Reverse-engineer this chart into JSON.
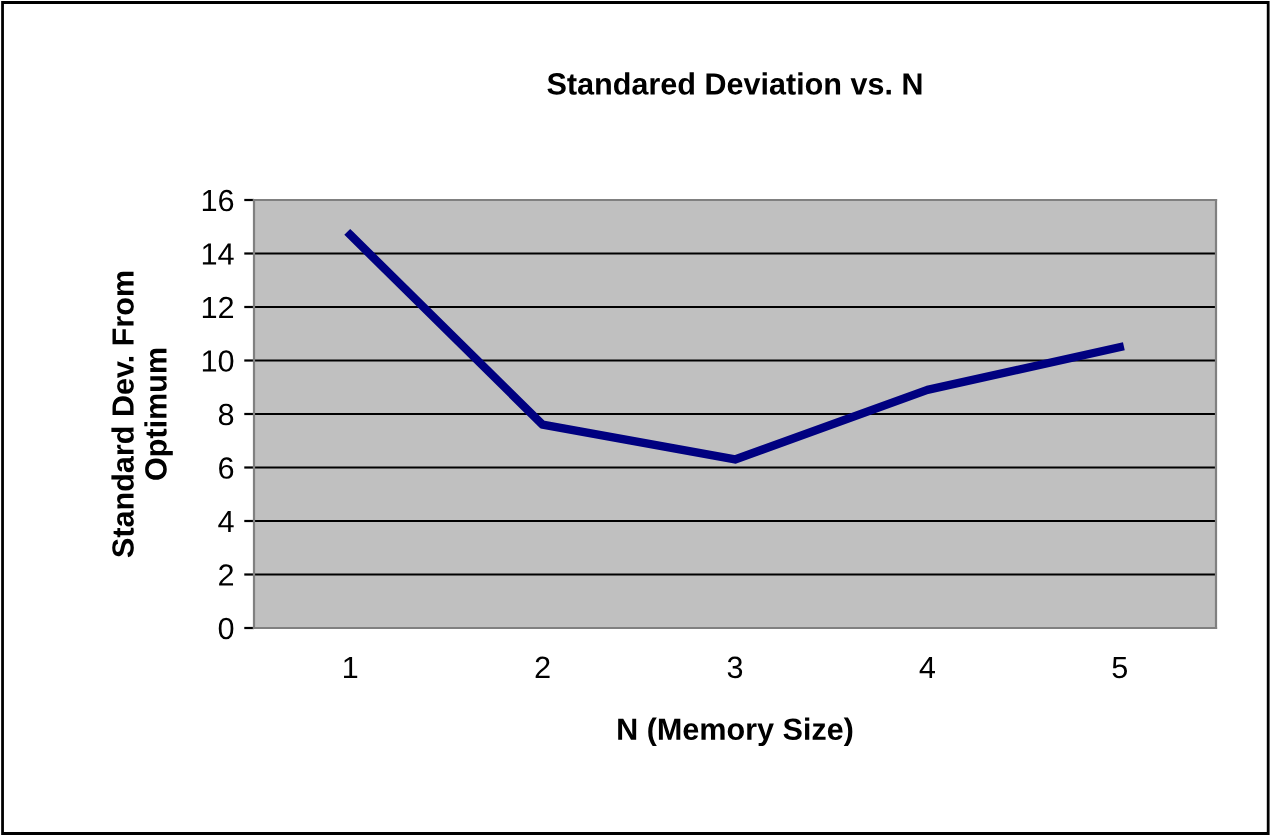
{
  "chart_data": {
    "type": "line",
    "title": "Standared Deviation vs. N",
    "xlabel": "N (Memory Size)",
    "ylabel": "Standard Dev. From Optimum",
    "categories": [
      "1",
      "2",
      "3",
      "4",
      "5"
    ],
    "series": [
      {
        "color": "#000080",
        "values": [
          14.7,
          7.6,
          6.3,
          8.9,
          10.5
        ]
      }
    ],
    "ylim": [
      0,
      16
    ],
    "yticks": [
      0,
      2,
      4,
      6,
      8,
      10,
      12,
      14,
      16
    ],
    "grid": "y",
    "marker": "none",
    "line_style": "solid"
  }
}
